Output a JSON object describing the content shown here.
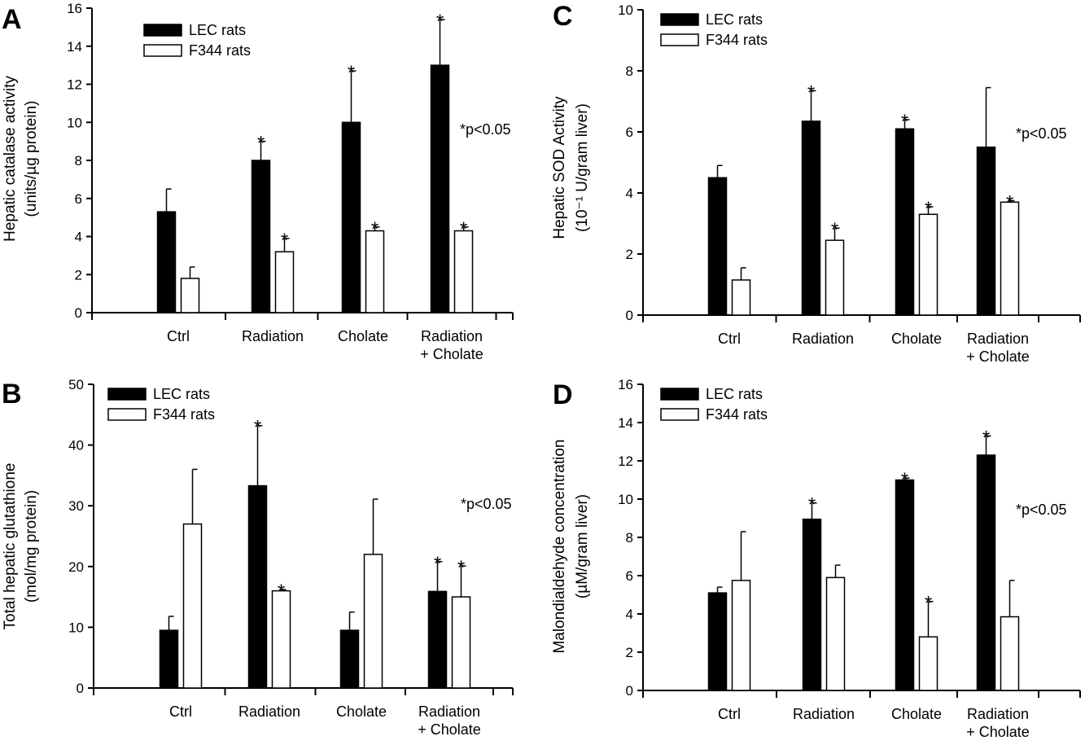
{
  "chart_data": [
    {
      "panel": "A",
      "type": "bar",
      "categories": [
        [
          "Ctrl"
        ],
        [
          "Radiation"
        ],
        [
          "Cholate"
        ],
        [
          "Radiation",
          "+ Cholate"
        ]
      ],
      "ylabel_lines": [
        "Hepatic catalase activity",
        "(units/µg protein)"
      ],
      "ylim": [
        0,
        16
      ],
      "yticks": [
        0,
        2,
        4,
        6,
        8,
        10,
        12,
        14,
        16
      ],
      "legend": "top-left",
      "grid": false,
      "note": "*p<0.05",
      "series": [
        {
          "name": "LEC rats",
          "fill": "#000000",
          "values": [
            5.3,
            8.0,
            10.0,
            13.0
          ],
          "errors": [
            1.2,
            1.0,
            2.7,
            2.4
          ],
          "sig": [
            false,
            true,
            true,
            true
          ]
        },
        {
          "name": "F344 rats",
          "fill": "#ffffff",
          "values": [
            1.8,
            3.2,
            4.3,
            4.3
          ],
          "errors": [
            0.6,
            0.7,
            0.2,
            0.2
          ],
          "sig": [
            false,
            true,
            true,
            true
          ]
        }
      ]
    },
    {
      "panel": "C",
      "type": "bar",
      "categories": [
        [
          "Ctrl"
        ],
        [
          "Radiation"
        ],
        [
          "Cholate"
        ],
        [
          "Radiation",
          "+ Cholate"
        ]
      ],
      "ylabel_lines": [
        "Hepatic SOD Activity",
        "(10⁻¹ U/gram liver)"
      ],
      "ylim": [
        0,
        10
      ],
      "yticks": [
        0,
        2,
        4,
        6,
        8,
        10
      ],
      "legend": "top-left",
      "grid": false,
      "note": "*p<0.05",
      "series": [
        {
          "name": "LEC rats",
          "fill": "#000000",
          "values": [
            4.5,
            6.35,
            6.1,
            5.5
          ],
          "errors": [
            0.4,
            1.0,
            0.3,
            1.95
          ],
          "sig": [
            false,
            true,
            true,
            false
          ]
        },
        {
          "name": "F344 rats",
          "fill": "#ffffff",
          "values": [
            1.15,
            2.45,
            3.3,
            3.7
          ],
          "errors": [
            0.4,
            0.4,
            0.25,
            0.05
          ],
          "sig": [
            false,
            true,
            true,
            true
          ]
        }
      ]
    },
    {
      "panel": "B",
      "type": "bar",
      "categories": [
        [
          "Ctrl"
        ],
        [
          "Radiation"
        ],
        [
          "Cholate"
        ],
        [
          "Radiation",
          "+ Cholate"
        ]
      ],
      "ylabel_lines": [
        "Total hepatic glutathione",
        "(mol/mg protein)"
      ],
      "ylim": [
        0,
        50
      ],
      "yticks": [
        0,
        10,
        20,
        30,
        40,
        50
      ],
      "legend": "top-left",
      "grid": false,
      "note": "*p<0.05",
      "series": [
        {
          "name": "LEC rats",
          "fill": "#000000",
          "values": [
            9.5,
            33.3,
            9.5,
            15.9
          ],
          "errors": [
            2.3,
            9.9,
            3.0,
            4.9
          ],
          "sig": [
            false,
            true,
            false,
            true
          ]
        },
        {
          "name": "F344 rats",
          "fill": "#ffffff",
          "values": [
            27.0,
            16.0,
            22.0,
            15.0
          ],
          "errors": [
            9.0,
            0.2,
            9.1,
            5.1
          ],
          "sig": [
            false,
            true,
            false,
            true
          ]
        }
      ]
    },
    {
      "panel": "D",
      "type": "bar",
      "categories": [
        [
          "Ctrl"
        ],
        [
          "Radiation"
        ],
        [
          "Cholate"
        ],
        [
          "Radiation",
          "+ Cholate"
        ]
      ],
      "ylabel_lines": [
        "Malondialdehyde concentration",
        "(µM/gram liver)"
      ],
      "ylim": [
        0,
        16
      ],
      "yticks": [
        0,
        2,
        4,
        6,
        8,
        10,
        12,
        14,
        16
      ],
      "legend": "top-left",
      "grid": false,
      "note": "*p<0.05",
      "series": [
        {
          "name": "LEC rats",
          "fill": "#000000",
          "values": [
            5.1,
            8.95,
            11.0,
            12.3
          ],
          "errors": [
            0.3,
            0.85,
            0.1,
            1.0
          ],
          "sig": [
            false,
            true,
            true,
            true
          ]
        },
        {
          "name": "F344 rats",
          "fill": "#ffffff",
          "values": [
            5.75,
            5.9,
            2.8,
            3.85
          ],
          "errors": [
            2.55,
            0.65,
            1.85,
            1.9
          ],
          "sig": [
            false,
            false,
            true,
            false
          ]
        }
      ]
    }
  ]
}
